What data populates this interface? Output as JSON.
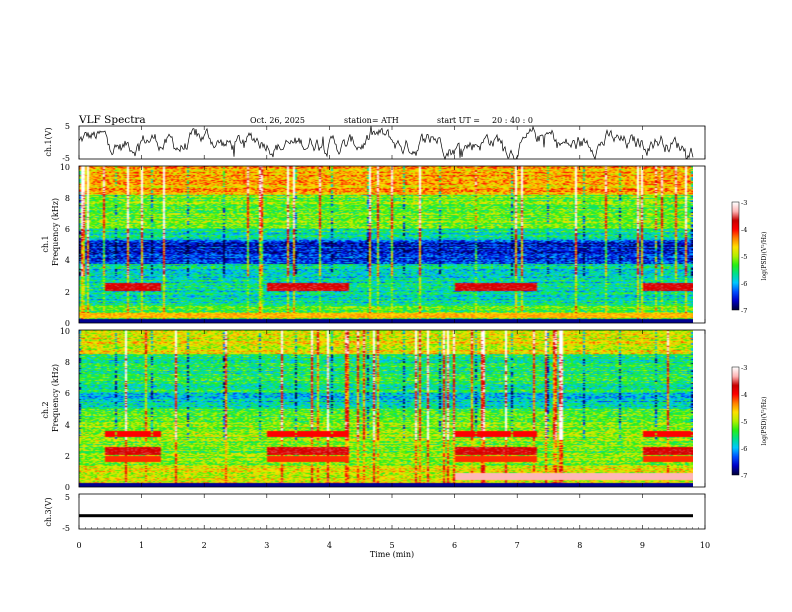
{
  "header": {
    "title": "VLF  Spectra",
    "date": "Oct. 26, 2025",
    "station": "station= ATH",
    "start_label": "start  UT  =",
    "start_time": "20 : 40 : 0"
  },
  "chart_data": [
    {
      "id": "ch1-waveform",
      "type": "line",
      "ylabel": "ch.1(V)",
      "ylim": [
        -5,
        5
      ],
      "yticks": [
        "5",
        "-5"
      ],
      "xlim": [
        0,
        10
      ],
      "line_color": "#000000"
    },
    {
      "id": "ch1-spectrogram",
      "type": "heatmap",
      "ylabel_top": "ch.1",
      "ylabel": "Frequency  (kHz)",
      "ylim": [
        0,
        10
      ],
      "yticks": [
        "0",
        "2",
        "4",
        "6",
        "8",
        "10"
      ],
      "xlim": [
        0,
        9.8
      ],
      "colorbar": {
        "label": "log(PSD)(V²/Hz)",
        "range": [
          -7,
          -3
        ],
        "ticks": [
          "-3",
          "-4",
          "-5",
          "-6",
          "-7"
        ]
      }
    },
    {
      "id": "ch2-spectrogram",
      "type": "heatmap",
      "ylabel_top": "ch.2",
      "ylabel": "Frequency  (kHz)",
      "ylim": [
        0,
        10
      ],
      "yticks": [
        "0",
        "2",
        "4",
        "6",
        "8",
        "10"
      ],
      "xlim": [
        0,
        9.8
      ],
      "colorbar": {
        "label": "log(PSD)(V²/Hz)",
        "range": [
          -7,
          -3
        ],
        "ticks": [
          "-3",
          "-4",
          "-5",
          "-6",
          "-7"
        ]
      }
    },
    {
      "id": "ch3-waveform",
      "type": "line",
      "ylabel": "ch.3(V)",
      "ylim": [
        -5,
        5
      ],
      "yticks": [
        "5",
        "-5"
      ],
      "xlim": [
        0,
        10
      ],
      "level": -1.2,
      "line_color": "#000000"
    }
  ],
  "x_axis": {
    "label": "Time  (min)",
    "range": [
      0,
      10
    ],
    "ticks": [
      "0",
      "1",
      "2",
      "3",
      "4",
      "5",
      "6",
      "7",
      "8",
      "9",
      "10"
    ]
  },
  "colors": {
    "colormap": [
      "#00003c",
      "#0000c8",
      "#0050ff",
      "#00c8ff",
      "#00e08c",
      "#28f014",
      "#b4f000",
      "#ffe000",
      "#ff8000",
      "#ff0000",
      "#c80000",
      "#ffb4b4",
      "#ffffff"
    ]
  }
}
